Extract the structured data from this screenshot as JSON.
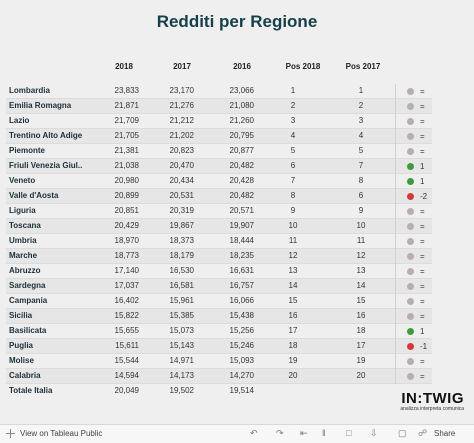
{
  "title": "Redditi per Regione",
  "headers": {
    "c2018": "2018",
    "c2017": "2017",
    "c2016": "2016",
    "pos2018": "Pos 2018",
    "pos2017": "Pos 2017"
  },
  "rows": [
    {
      "name": "Lombardia",
      "v2018": "23,833",
      "v2017": "23,170",
      "v2016": "23,066",
      "p2018": "1",
      "p2017": "1",
      "trend": "same",
      "delta": "="
    },
    {
      "name": "Emilia Romagna",
      "v2018": "21,871",
      "v2017": "21,276",
      "v2016": "21,080",
      "p2018": "2",
      "p2017": "2",
      "trend": "same",
      "delta": "="
    },
    {
      "name": "Lazio",
      "v2018": "21,709",
      "v2017": "21,212",
      "v2016": "21,260",
      "p2018": "3",
      "p2017": "3",
      "trend": "same",
      "delta": "="
    },
    {
      "name": "Trentino Alto Adige",
      "v2018": "21,705",
      "v2017": "21,202",
      "v2016": "20,795",
      "p2018": "4",
      "p2017": "4",
      "trend": "same",
      "delta": "="
    },
    {
      "name": "Piemonte",
      "v2018": "21,381",
      "v2017": "20,823",
      "v2016": "20,877",
      "p2018": "5",
      "p2017": "5",
      "trend": "same",
      "delta": "="
    },
    {
      "name": "Friuli Venezia Giul..",
      "v2018": "21,038",
      "v2017": "20,470",
      "v2016": "20,482",
      "p2018": "6",
      "p2017": "7",
      "trend": "up",
      "delta": "1"
    },
    {
      "name": "Veneto",
      "v2018": "20,980",
      "v2017": "20,434",
      "v2016": "20,428",
      "p2018": "7",
      "p2017": "8",
      "trend": "up",
      "delta": "1"
    },
    {
      "name": "Valle d'Aosta",
      "v2018": "20,899",
      "v2017": "20,531",
      "v2016": "20,482",
      "p2018": "8",
      "p2017": "6",
      "trend": "down",
      "delta": "-2"
    },
    {
      "name": "Liguria",
      "v2018": "20,851",
      "v2017": "20,319",
      "v2016": "20,571",
      "p2018": "9",
      "p2017": "9",
      "trend": "same",
      "delta": "="
    },
    {
      "name": "Toscana",
      "v2018": "20,429",
      "v2017": "19,867",
      "v2016": "19,907",
      "p2018": "10",
      "p2017": "10",
      "trend": "same",
      "delta": "="
    },
    {
      "name": "Umbria",
      "v2018": "18,970",
      "v2017": "18,373",
      "v2016": "18,444",
      "p2018": "11",
      "p2017": "11",
      "trend": "same",
      "delta": "="
    },
    {
      "name": "Marche",
      "v2018": "18,773",
      "v2017": "18,179",
      "v2016": "18,235",
      "p2018": "12",
      "p2017": "12",
      "trend": "same",
      "delta": "="
    },
    {
      "name": "Abruzzo",
      "v2018": "17,140",
      "v2017": "16,530",
      "v2016": "16,631",
      "p2018": "13",
      "p2017": "13",
      "trend": "same",
      "delta": "="
    },
    {
      "name": "Sardegna",
      "v2018": "17,037",
      "v2017": "16,581",
      "v2016": "16,757",
      "p2018": "14",
      "p2017": "14",
      "trend": "same",
      "delta": "="
    },
    {
      "name": "Campania",
      "v2018": "16,402",
      "v2017": "15,961",
      "v2016": "16,066",
      "p2018": "15",
      "p2017": "15",
      "trend": "same",
      "delta": "="
    },
    {
      "name": "Sicilia",
      "v2018": "15,822",
      "v2017": "15,385",
      "v2016": "15,438",
      "p2018": "16",
      "p2017": "16",
      "trend": "same",
      "delta": "="
    },
    {
      "name": "Basilicata",
      "v2018": "15,655",
      "v2017": "15,073",
      "v2016": "15,256",
      "p2018": "17",
      "p2017": "18",
      "trend": "up",
      "delta": "1"
    },
    {
      "name": "Puglia",
      "v2018": "15,611",
      "v2017": "15,143",
      "v2016": "15,246",
      "p2018": "18",
      "p2017": "17",
      "trend": "down",
      "delta": "-1"
    },
    {
      "name": "Molise",
      "v2018": "15,544",
      "v2017": "14,971",
      "v2016": "15,093",
      "p2018": "19",
      "p2017": "19",
      "trend": "same",
      "delta": "="
    },
    {
      "name": "Calabria",
      "v2018": "14,594",
      "v2017": "14,173",
      "v2016": "14,270",
      "p2018": "20",
      "p2017": "20",
      "trend": "same",
      "delta": "="
    }
  ],
  "total": {
    "name": "Totale Italia",
    "v2018": "20,049",
    "v2017": "19,502",
    "v2016": "19,514"
  },
  "colors": {
    "same": "#b8aeab",
    "up": "#3f9a3e",
    "down": "#d23a3a"
  },
  "logo": {
    "main": "IN:TWIG",
    "sub": "analizza interpreta comunica"
  },
  "footer": {
    "view_label": "View on Tableau Public",
    "share_label": "Share"
  }
}
